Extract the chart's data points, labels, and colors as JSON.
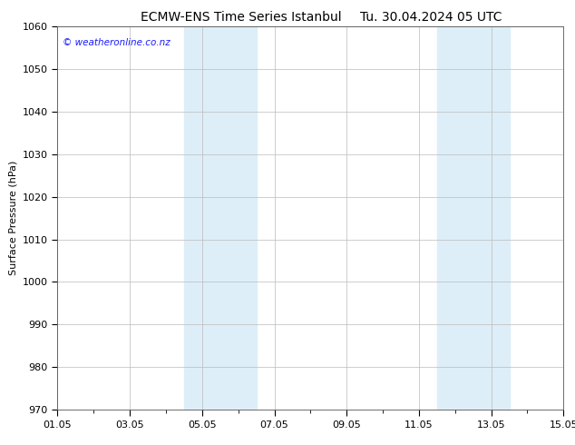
{
  "title_left": "ECMW-ENS Time Series Istanbul",
  "title_right": "Tu. 30.04.2024 05 UTC",
  "ylabel": "Surface Pressure (hPa)",
  "ylim": [
    970,
    1060
  ],
  "yticks": [
    970,
    980,
    990,
    1000,
    1010,
    1020,
    1030,
    1040,
    1050,
    1060
  ],
  "xlim_start": 0,
  "xlim_end": 14,
  "xtick_positions": [
    0,
    2,
    4,
    6,
    8,
    10,
    12,
    14
  ],
  "xtick_labels": [
    "01.05",
    "03.05",
    "05.05",
    "07.05",
    "09.05",
    "11.05",
    "13.05",
    "15.05"
  ],
  "shaded_bands": [
    {
      "xmin": 3.5,
      "xmax": 5.5
    },
    {
      "xmin": 10.5,
      "xmax": 12.5
    }
  ],
  "band_color": "#ddeef8",
  "background_color": "#ffffff",
  "plot_bg_color": "#ffffff",
  "grid_color": "#bbbbbb",
  "watermark_text": "© weatheronline.co.nz",
  "watermark_color": "#1a1aff",
  "title_fontsize": 10,
  "label_fontsize": 8,
  "tick_fontsize": 8
}
